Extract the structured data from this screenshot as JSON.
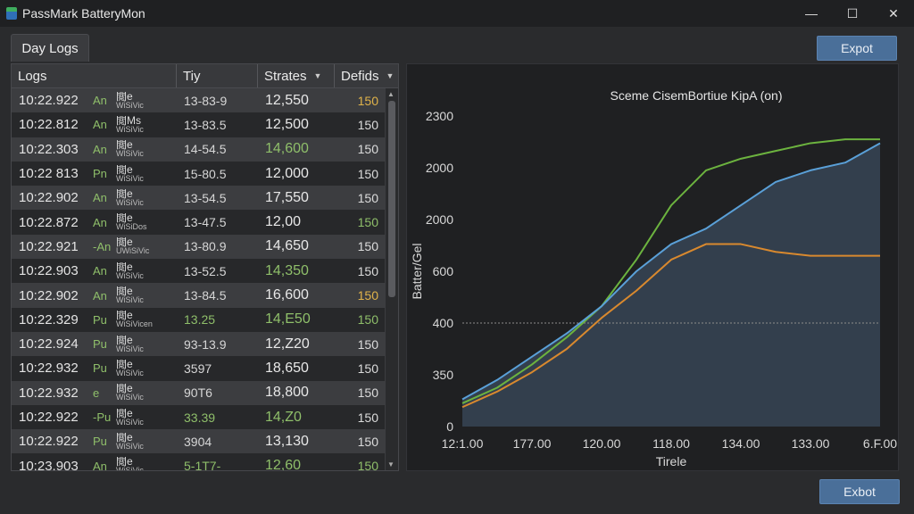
{
  "window": {
    "title": "PassMark BatteryMon",
    "minimize": "—",
    "maximize": "☐",
    "close": "✕"
  },
  "tab": {
    "label": "Day Logs"
  },
  "toolbar": {
    "export_top": "Expot",
    "export_bottom": "Exbot"
  },
  "table": {
    "headers": {
      "logs": "Logs",
      "day": "Tiy",
      "status": "Strates",
      "defids": "Defids"
    },
    "rows": [
      {
        "time": "10:22.922",
        "ap": "An",
        "l1": "閲e",
        "l2": "WiSiVic",
        "day": "13-83-9",
        "status": "12,550",
        "defids": "150",
        "day_c": "",
        "st_c": "",
        "df_c": "y"
      },
      {
        "time": "10:22.812",
        "ap": "An",
        "l1": "閲Ms",
        "l2": "WiSiVic",
        "day": "13-83.5",
        "status": "12,500",
        "defids": "150",
        "day_c": "",
        "st_c": "",
        "df_c": ""
      },
      {
        "time": "10:22.303",
        "ap": "An",
        "l1": "閲e",
        "l2": "WlSiVic",
        "day": "14-54.5",
        "status": "14,600",
        "defids": "150",
        "day_c": "",
        "st_c": "g",
        "df_c": ""
      },
      {
        "time": "10:22 813",
        "ap": "Pn",
        "l1": "閲e",
        "l2": "WiSiVic",
        "day": "15-80.5",
        "status": "12,000",
        "defids": "150",
        "day_c": "",
        "st_c": "",
        "df_c": ""
      },
      {
        "time": "10:22.902",
        "ap": "An",
        "l1": "閲e",
        "l2": "WiSiVic",
        "day": "13-54.5",
        "status": "17,550",
        "defids": "150",
        "day_c": "",
        "st_c": "",
        "df_c": ""
      },
      {
        "time": "10:22.872",
        "ap": "An",
        "l1": "閲e",
        "l2": "WiSiDos",
        "day": "13-47.5",
        "status": "12,00",
        "defids": "150",
        "day_c": "",
        "st_c": "",
        "df_c": "g"
      },
      {
        "time": "10:22.921",
        "ap": "-An",
        "l1": "閲e",
        "l2": "UWiSiVic",
        "day": "13-80.9",
        "status": "14,650",
        "defids": "150",
        "day_c": "",
        "st_c": "",
        "df_c": ""
      },
      {
        "time": "10:22.903",
        "ap": "An",
        "l1": "閲e",
        "l2": "WiSiVic",
        "day": "13-52.5",
        "status": "14,350",
        "defids": "150",
        "day_c": "",
        "st_c": "g",
        "df_c": ""
      },
      {
        "time": "10:22.902",
        "ap": "An",
        "l1": "閲e",
        "l2": "WiSiVic",
        "day": "13-84.5",
        "status": "16,600",
        "defids": "150",
        "day_c": "",
        "st_c": "",
        "df_c": "y"
      },
      {
        "time": "10:22.329",
        "ap": "Pu",
        "l1": "閲e",
        "l2": "WiSiVicen",
        "day": "13.25",
        "status": "14,E50",
        "defids": "150",
        "day_c": "g",
        "st_c": "g",
        "df_c": "g"
      },
      {
        "time": "10:22.924",
        "ap": "Pu",
        "l1": "閲e",
        "l2": "WiSiVic",
        "day": "93-13.9",
        "status": "12,Z20",
        "defids": "150",
        "day_c": "",
        "st_c": "",
        "df_c": ""
      },
      {
        "time": "10:22.932",
        "ap": "Pu",
        "l1": "閲e",
        "l2": "WiSiVic",
        "day": "3597",
        "status": "18,650",
        "defids": "150",
        "day_c": "",
        "st_c": "",
        "df_c": ""
      },
      {
        "time": "10:22.932",
        "ap": "e",
        "l1": "閲e",
        "l2": "WiSiVic",
        "day": "90T6",
        "status": "18,800",
        "defids": "150",
        "day_c": "",
        "st_c": "",
        "df_c": ""
      },
      {
        "time": "10:22.922",
        "ap": "-Pu",
        "l1": "閲e",
        "l2": "WiSiVic",
        "day": "33.39",
        "status": "14,Z0",
        "defids": "150",
        "day_c": "g",
        "st_c": "g",
        "df_c": ""
      },
      {
        "time": "10:22.922",
        "ap": "Pu",
        "l1": "閲e",
        "l2": "WiSiVic",
        "day": "3904",
        "status": "13,130",
        "defids": "150",
        "day_c": "",
        "st_c": "",
        "df_c": ""
      },
      {
        "time": "10:23.903",
        "ap": "An",
        "l1": "閲e",
        "l2": "WiSiVic",
        "day": "5-1T7-",
        "status": "12,60",
        "defids": "150",
        "day_c": "g",
        "st_c": "g",
        "df_c": "g"
      }
    ]
  },
  "chart_data": {
    "type": "line",
    "title": "Sceme CisemBortiue KipA (on)",
    "xlabel": "Tirele",
    "ylabel": "Batter/Gel",
    "x_tick_labels": [
      "12:1.00",
      "177.00",
      "120.00",
      "118.00",
      "134.00",
      "133.00",
      "6.F.00"
    ],
    "y_tick_labels": [
      "0",
      "350",
      "400",
      "600",
      "2000",
      "2000",
      "2300"
    ],
    "reference_line_at_tick": "400",
    "x": [
      0,
      0.5,
      1,
      1.5,
      2,
      2.5,
      3,
      3.5,
      4,
      4.5,
      5,
      5.5,
      6
    ],
    "series": [
      {
        "color": "#6cb33f",
        "values": [
          0.6,
          1.0,
          1.6,
          2.3,
          3.1,
          4.3,
          5.7,
          6.6,
          6.9,
          7.1,
          7.3,
          7.4,
          7.4
        ]
      },
      {
        "color": "#5aa0d8",
        "values": [
          0.7,
          1.2,
          1.8,
          2.4,
          3.1,
          4.0,
          4.7,
          5.1,
          5.7,
          6.3,
          6.6,
          6.8,
          7.3
        ]
      },
      {
        "color": "#d9892e",
        "values": [
          0.5,
          0.9,
          1.4,
          2.0,
          2.8,
          3.5,
          4.3,
          4.7,
          4.7,
          4.5,
          4.4,
          4.4,
          4.4
        ]
      }
    ],
    "ylim": [
      0,
      8
    ],
    "grid": false,
    "legend": "none"
  }
}
